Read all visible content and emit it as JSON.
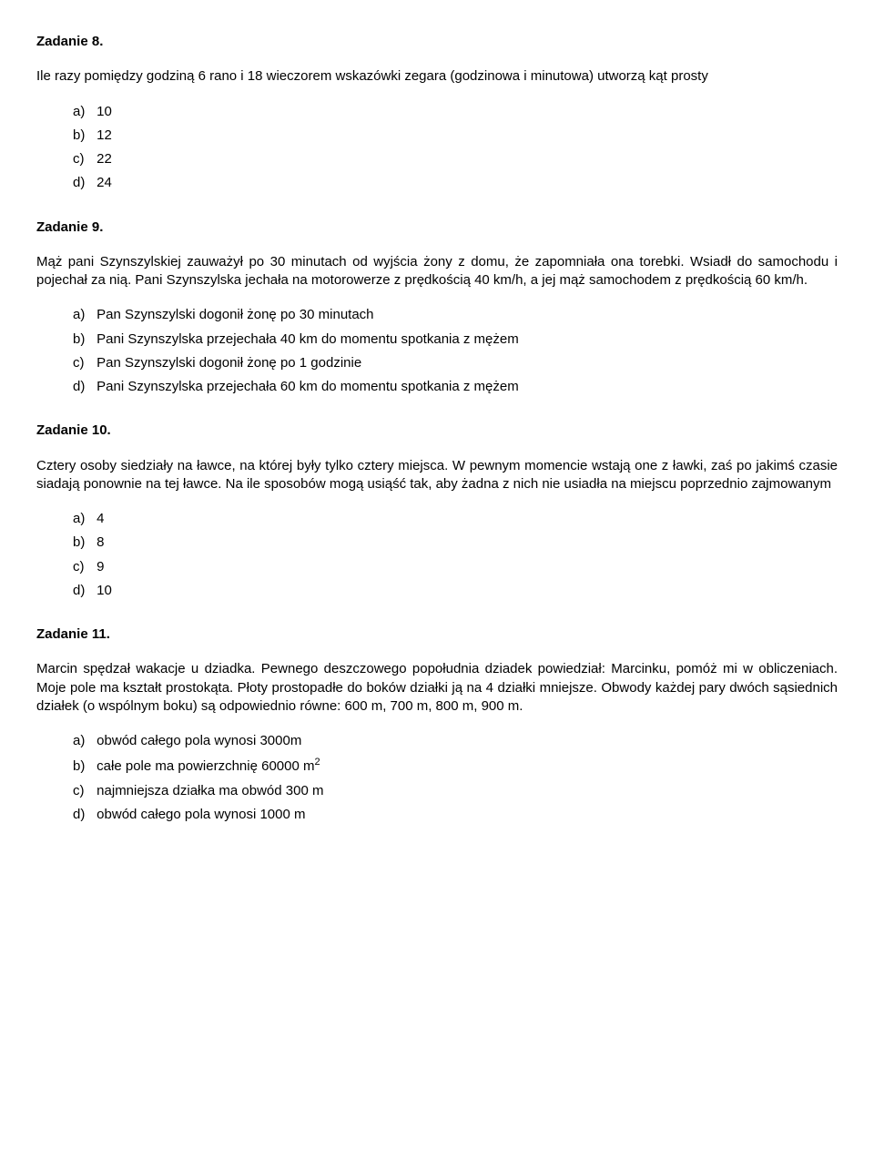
{
  "tasks": [
    {
      "title": "Zadanie 8.",
      "body": "Ile razy pomiędzy godziną 6 rano i 18 wieczorem wskazówki zegara (godzinowa i minutowa) utworzą kąt prosty",
      "options": [
        {
          "letter": "a)",
          "text": "10"
        },
        {
          "letter": "b)",
          "text": "12"
        },
        {
          "letter": "c)",
          "text": "22"
        },
        {
          "letter": "d)",
          "text": "24"
        }
      ]
    },
    {
      "title": "Zadanie 9.",
      "body": "Mąż pani Szynszylskiej zauważył po 30 minutach od wyjścia żony z domu, że zapomniała ona torebki. Wsiadł do samochodu i pojechał za nią. Pani Szynszylska jechała na motorowerze z prędkością 40 km/h, a jej mąż samochodem z prędkością 60 km/h.",
      "options": [
        {
          "letter": "a)",
          "text": "Pan Szynszylski dogonił żonę po 30 minutach"
        },
        {
          "letter": "b)",
          "text": "Pani Szynszylska przejechała 40 km do momentu spotkania z mężem"
        },
        {
          "letter": "c)",
          "text": "Pan Szynszylski dogonił żonę po 1 godzinie"
        },
        {
          "letter": "d)",
          "text": " Pani Szynszylska przejechała 60 km do momentu spotkania z mężem"
        }
      ]
    },
    {
      "title": "Zadanie 10.",
      "body": "Cztery osoby siedziały na ławce, na której były tylko cztery miejsca. W pewnym momencie wstają one z ławki, zaś po jakimś czasie siadają ponownie na tej ławce. Na ile sposobów mogą usiąść tak, aby żadna z nich nie usiadła na miejscu poprzednio zajmowanym",
      "options": [
        {
          "letter": "a)",
          "text": "4"
        },
        {
          "letter": "b)",
          "text": "8"
        },
        {
          "letter": "c)",
          "text": "9"
        },
        {
          "letter": "d)",
          "text": "10"
        }
      ]
    },
    {
      "title": "Zadanie 11.",
      "body": "Marcin spędzał wakacje u dziadka. Pewnego deszczowego popołudnia dziadek powiedział: Marcinku, pomóż mi w obliczeniach. Moje pole ma kształt prostokąta. Płoty prostopadłe do boków działki ją na 4 działki mniejsze. Obwody każdej pary dwóch sąsiednich działek (o wspólnym boku) są odpowiednio równe: 600 m, 700 m, 800 m, 900 m.",
      "options": [
        {
          "letter": "a)",
          "text": "obwód całego pola wynosi 3000m"
        },
        {
          "letter": "b)",
          "text": "całe pole ma powierzchnię 60000 m",
          "sup": "2"
        },
        {
          "letter": "c)",
          "text": "najmniejsza działka ma obwód 300 m"
        },
        {
          "letter": "d)",
          "text": "obwód całego pola wynosi 1000 m"
        }
      ]
    }
  ]
}
